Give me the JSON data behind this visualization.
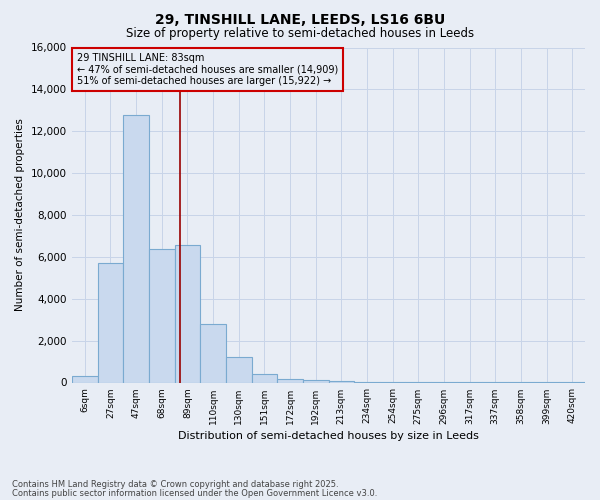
{
  "title_line1": "29, TINSHILL LANE, LEEDS, LS16 6BU",
  "title_line2": "Size of property relative to semi-detached houses in Leeds",
  "xlabel": "Distribution of semi-detached houses by size in Leeds",
  "ylabel": "Number of semi-detached properties",
  "footer_line1": "Contains HM Land Registry data © Crown copyright and database right 2025.",
  "footer_line2": "Contains public sector information licensed under the Open Government Licence v3.0.",
  "bar_labels": [
    "6sqm",
    "27sqm",
    "47sqm",
    "68sqm",
    "89sqm",
    "110sqm",
    "130sqm",
    "151sqm",
    "172sqm",
    "192sqm",
    "213sqm",
    "234sqm",
    "254sqm",
    "275sqm",
    "296sqm",
    "317sqm",
    "337sqm",
    "358sqm",
    "399sqm",
    "420sqm"
  ],
  "bar_values": [
    300,
    5700,
    12800,
    6400,
    6550,
    2800,
    1200,
    400,
    190,
    120,
    50,
    20,
    8,
    4,
    3,
    2,
    1,
    1,
    1,
    1
  ],
  "bar_color": "#c9d9ee",
  "bar_edgecolor": "#7aaad0",
  "ylim": [
    0,
    16000
  ],
  "yticks": [
    0,
    2000,
    4000,
    6000,
    8000,
    10000,
    12000,
    14000,
    16000
  ],
  "vline_x_index": 3.72,
  "vline_color": "#990000",
  "annotation_box_text": "29 TINSHILL LANE: 83sqm\n← 47% of semi-detached houses are smaller (14,909)\n51% of semi-detached houses are larger (15,922) →",
  "annotation_box_edgecolor": "#cc0000",
  "grid_color": "#c8d4e8",
  "background_color": "#e8edf5"
}
